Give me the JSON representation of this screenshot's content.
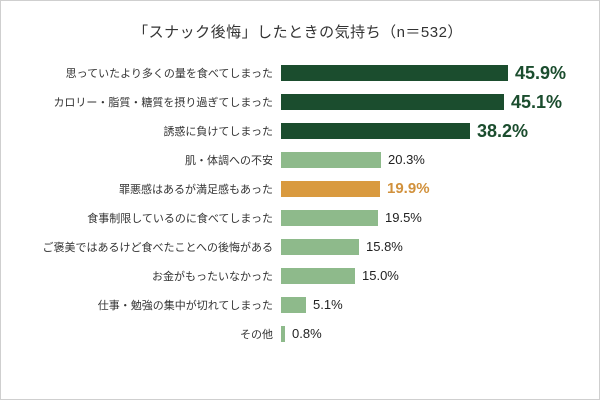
{
  "chart_data": {
    "type": "bar",
    "orientation": "horizontal",
    "title": "「スナック後悔」したときの気持ち（n＝532）",
    "xlim": [
      0,
      50
    ],
    "grid": false,
    "legend": "none",
    "value_suffix": "%",
    "colors": {
      "dark": "#1b4d2e",
      "light": "#8eba8b",
      "accent": "#d99a3f"
    },
    "categories": [
      "思っていたより多くの量を食べてしまった",
      "カロリー・脂質・糖質を摂り過ぎてしまった",
      "誘惑に負けてしまった",
      "肌・体調への不安",
      "罪悪感はあるが満足感もあった",
      "食事制限しているのに食べてしまった",
      "ご褒美ではあるけど食べたことへの後悔がある",
      "お金がもったいなかった",
      "仕事・勉強の集中が切れてしまった",
      "その他"
    ],
    "values": [
      45.9,
      45.1,
      38.2,
      20.3,
      19.9,
      19.5,
      15.8,
      15.0,
      5.1,
      0.8
    ],
    "bars": [
      {
        "category": "思っていたより多くの量を食べてしまった",
        "value": 45.9,
        "label": "45.9%",
        "style": "dark"
      },
      {
        "category": "カロリー・脂質・糖質を摂り過ぎてしまった",
        "value": 45.1,
        "label": "45.1%",
        "style": "dark"
      },
      {
        "category": "誘惑に負けてしまった",
        "value": 38.2,
        "label": "38.2%",
        "style": "dark"
      },
      {
        "category": "肌・体調への不安",
        "value": 20.3,
        "label": "20.3%",
        "style": "light"
      },
      {
        "category": "罪悪感はあるが満足感もあった",
        "value": 19.9,
        "label": "19.9%",
        "style": "accent"
      },
      {
        "category": "食事制限しているのに食べてしまった",
        "value": 19.5,
        "label": "19.5%",
        "style": "light"
      },
      {
        "category": "ご褒美ではあるけど食べたことへの後悔がある",
        "value": 15.8,
        "label": "15.8%",
        "style": "light"
      },
      {
        "category": "お金がもったいなかった",
        "value": 15.0,
        "label": "15.0%",
        "style": "light"
      },
      {
        "category": "仕事・勉強の集中が切れてしまった",
        "value": 5.1,
        "label": "5.1%",
        "style": "light"
      },
      {
        "category": "その他",
        "value": 0.8,
        "label": "0.8%",
        "style": "light"
      }
    ]
  }
}
